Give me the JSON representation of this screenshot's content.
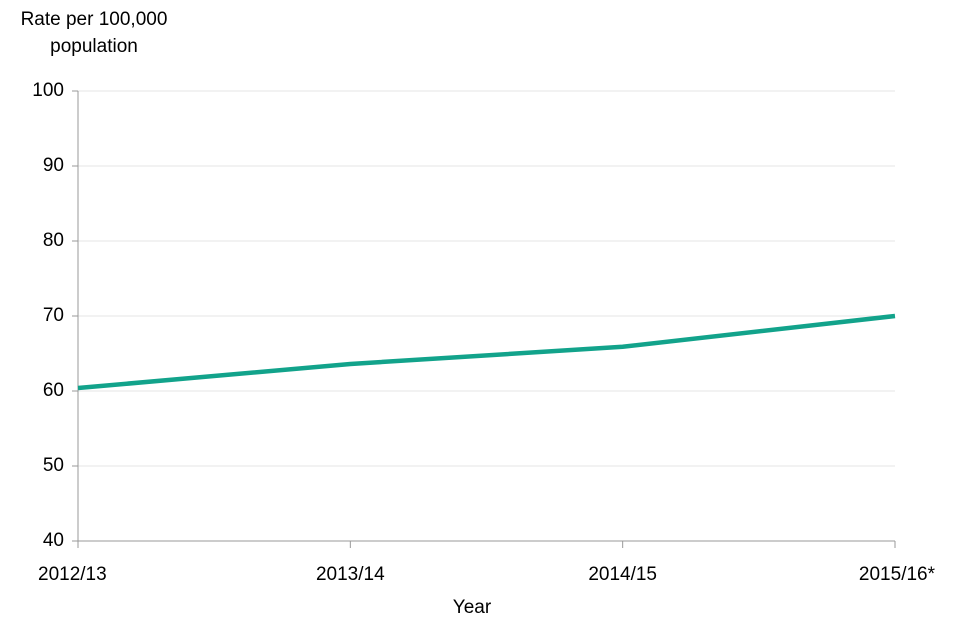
{
  "chart_data": {
    "type": "line",
    "y_label": "Rate per 100,000 population",
    "x_label": "Year",
    "categories": [
      "2012/13",
      "2013/14",
      "2014/15",
      "2015/16*"
    ],
    "series": [
      {
        "name": "Rate",
        "color": "#12a38b",
        "values": [
          60.4,
          63.6,
          65.9,
          70.0
        ]
      }
    ],
    "ylim": [
      40,
      100
    ],
    "yticks": [
      40,
      50,
      60,
      70,
      80,
      90,
      100
    ],
    "grid": true
  }
}
